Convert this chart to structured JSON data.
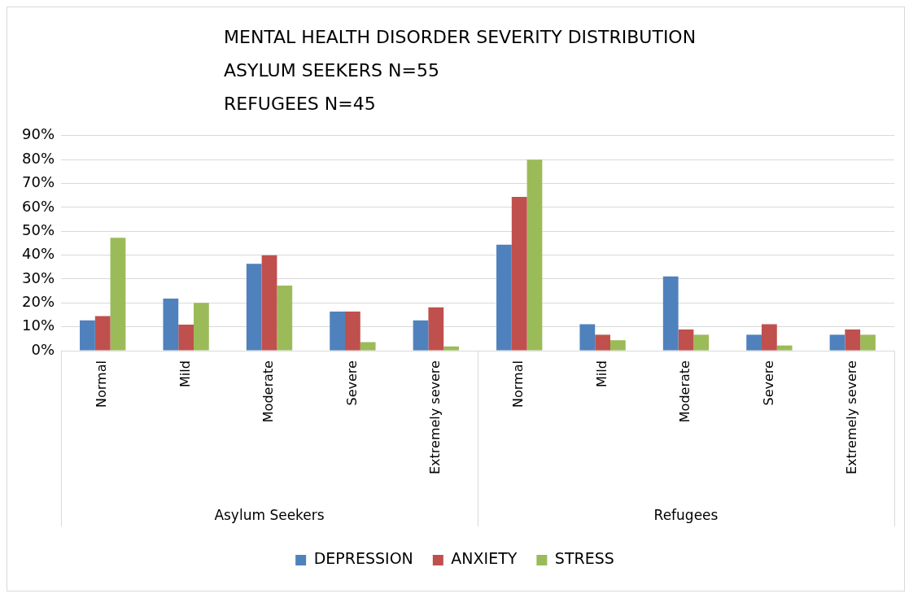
{
  "chart_data": {
    "type": "bar",
    "title": "MENTAL HEALTH DISORDER SEVERITY DISTRIBUTION",
    "subtitle": "ASYLUM SEEKERS N=55\nREFUGEES N=45",
    "categories": [
      "Normal",
      "Mild",
      "Moderate",
      "Severe",
      "Extremely severe",
      "Normal",
      "Mild",
      "Moderate",
      "Severe",
      "Extremely severe"
    ],
    "annotations": [
      "Asylum Seekers",
      "Refugees"
    ],
    "series": [
      {
        "name": "DEPRESSION",
        "color": "#4f81bd",
        "values": [
          12.7,
          21.8,
          36.4,
          16.4,
          12.7,
          44.4,
          11.1,
          31.1,
          6.7,
          6.7
        ]
      },
      {
        "name": "ANXIETY",
        "color": "#c0504d",
        "values": [
          14.5,
          10.9,
          40,
          16.4,
          18.2,
          64.4,
          6.7,
          8.9,
          11.1,
          8.9
        ]
      },
      {
        "name": "STRESS",
        "color": "#9bbb59",
        "values": [
          47.3,
          20,
          27.3,
          3.6,
          1.8,
          80,
          4.4,
          6.7,
          2.2,
          6.7
        ]
      }
    ],
    "ylim": [
      0,
      90
    ],
    "yticks": [
      {
        "value": 0,
        "label": "0%"
      },
      {
        "value": 10,
        "label": "10%"
      },
      {
        "value": 20,
        "label": "20%"
      },
      {
        "value": 30,
        "label": "30%"
      },
      {
        "value": 40,
        "label": "40%"
      },
      {
        "value": 50,
        "label": "50%"
      },
      {
        "value": 60,
        "label": "60%"
      },
      {
        "value": 70,
        "label": "70%"
      },
      {
        "value": 80,
        "label": "80%"
      },
      {
        "value": 90,
        "label": "90%"
      }
    ],
    "grid": "y",
    "legend": "bottom"
  }
}
